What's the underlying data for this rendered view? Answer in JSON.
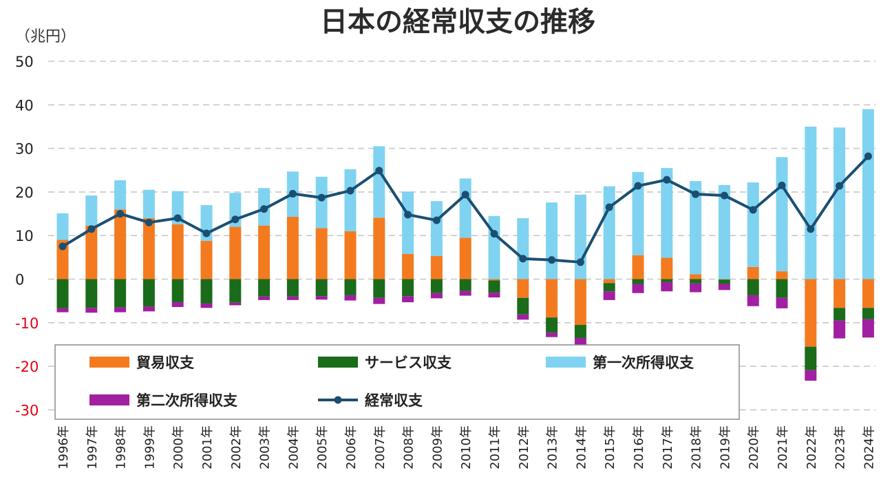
{
  "chart_data": {
    "type": "bar",
    "title": "日本の経常収支の推移",
    "unit_label": "（兆円）",
    "ylim": [
      -30,
      50
    ],
    "yticks": [
      50,
      40,
      30,
      20,
      10,
      0,
      -10,
      -20,
      -30
    ],
    "ytick_labels": [
      "50",
      "40",
      "30",
      "20",
      "10",
      "0",
      "-10",
      "-20",
      "-30"
    ],
    "negative_tick_color": "#e60012",
    "grid": true,
    "legend_position": "bottom-left",
    "categories": [
      "1996年",
      "1997年",
      "1998年",
      "1999年",
      "2000年",
      "2001年",
      "2002年",
      "2003年",
      "2004年",
      "2005年",
      "2006年",
      "2007年",
      "2008年",
      "2009年",
      "2010年",
      "2011年",
      "2012年",
      "2013年",
      "2014年",
      "2015年",
      "2016年",
      "2017年",
      "2018年",
      "2019年",
      "2020年",
      "2021年",
      "2022年",
      "2023年",
      "2024年"
    ],
    "stacked": true,
    "series": [
      {
        "name": "貿易収支",
        "kind": "bar",
        "color": "#f47a20",
        "values": [
          9.0,
          12.3,
          16.0,
          14.0,
          12.6,
          8.8,
          12.0,
          12.3,
          14.3,
          11.7,
          11.0,
          14.1,
          5.8,
          5.3,
          9.5,
          -0.3,
          -4.3,
          -8.8,
          -10.5,
          -0.9,
          5.5,
          4.9,
          1.1,
          -0.1,
          2.8,
          1.8,
          -15.5,
          -6.6,
          -6.6
        ]
      },
      {
        "name": "サービス収支",
        "kind": "bar",
        "color": "#1a6b1a",
        "values": [
          -6.7,
          -6.6,
          -6.5,
          -6.3,
          -5.3,
          -5.6,
          -5.4,
          -4.0,
          -4.0,
          -3.9,
          -3.7,
          -4.3,
          -3.9,
          -3.2,
          -2.7,
          -2.8,
          -3.8,
          -3.5,
          -3.0,
          -1.9,
          -1.1,
          -0.7,
          -1.0,
          -1.0,
          -3.7,
          -4.3,
          -5.4,
          -2.9,
          -2.6
        ]
      },
      {
        "name": "第一次所得収支",
        "kind": "bar",
        "color": "#7fd3f0",
        "values": [
          6.1,
          6.9,
          6.7,
          6.5,
          7.6,
          8.2,
          7.8,
          8.6,
          10.4,
          11.8,
          14.2,
          16.4,
          14.3,
          12.6,
          13.6,
          14.5,
          14.0,
          17.6,
          19.4,
          21.3,
          19.1,
          20.6,
          21.4,
          21.6,
          19.4,
          26.2,
          35.0,
          34.8,
          39.0
        ]
      },
      {
        "name": "第二次所得収支",
        "kind": "bar",
        "color": "#a11fa1",
        "values": [
          -0.9,
          -1.1,
          -1.1,
          -1.1,
          -1.1,
          -1.0,
          -0.6,
          -0.8,
          -0.8,
          -0.8,
          -1.2,
          -1.4,
          -1.4,
          -1.2,
          -1.1,
          -1.1,
          -1.2,
          -1.0,
          -2.0,
          -2.0,
          -2.1,
          -2.1,
          -2.0,
          -1.4,
          -2.5,
          -2.4,
          -2.4,
          -4.1,
          -4.2
        ]
      },
      {
        "name": "経常収支",
        "kind": "line",
        "color": "#1b4f72",
        "values": [
          7.5,
          11.5,
          15.0,
          13.0,
          14.0,
          10.5,
          13.7,
          16.1,
          19.6,
          18.7,
          20.3,
          24.9,
          14.8,
          13.5,
          19.4,
          10.4,
          4.7,
          4.4,
          3.9,
          16.5,
          21.4,
          22.8,
          19.5,
          19.2,
          15.9,
          21.5,
          11.5,
          21.4,
          28.2
        ]
      }
    ]
  }
}
